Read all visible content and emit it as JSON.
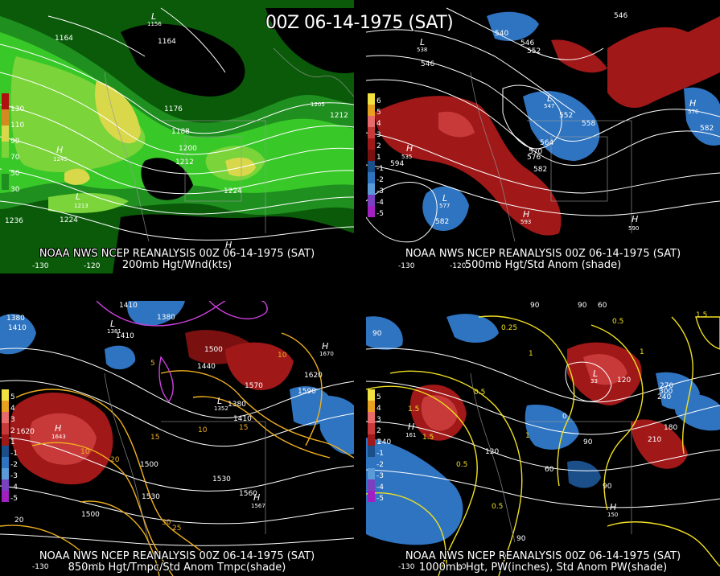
{
  "header": {
    "title": "00Z 06-14-1975 (SAT)"
  },
  "panels": [
    {
      "id": "tl",
      "caption_top": "NOAA NWS NCEP REANALYSIS 00Z 06-14-1975 (SAT)",
      "caption_bottom": "200mb Hgt/Wnd(kts)",
      "colorbar": [
        "130",
        "110",
        "90",
        "70",
        "50",
        "30"
      ],
      "labels": [
        "1164",
        "1164",
        "1176",
        "1188",
        "1200",
        "1212",
        "1212",
        "1224",
        "1224",
        "1236",
        "1205",
        "1212",
        "H",
        "1245",
        "L",
        "1213",
        "L",
        "1156",
        "H",
        "-130",
        "-120"
      ]
    },
    {
      "id": "tr",
      "caption_top": "NOAA NWS NCEP REANALYSIS 00Z 06-14-1975 (SAT)",
      "caption_bottom": "500mb Hgt/Std Anom (shade)",
      "colorbar": [
        "6",
        "5",
        "4",
        "3",
        "2",
        "1",
        "-1",
        "-2",
        "-3",
        "-4",
        "-5"
      ],
      "labels": [
        "540",
        "546",
        "552",
        "546",
        "558",
        "564",
        "570",
        "576",
        "582",
        "582",
        "594",
        "582",
        "552",
        "546",
        "L",
        "547",
        "H",
        "535",
        "L",
        "577",
        "H",
        "593",
        "H",
        "590",
        "H",
        "576",
        "L",
        "538",
        "-130",
        "-120"
      ]
    },
    {
      "id": "bl",
      "caption_top": "NOAA NWS NCEP REANALYSIS 00Z 06-14-1975 (SAT)",
      "caption_bottom": "850mb Hgt/Tmpc/Std Anom Tmpc(shade)",
      "colorbar": [
        "5",
        "4",
        "3",
        "2",
        "1",
        "-1",
        "-2",
        "-3",
        "-4",
        "-5"
      ],
      "labels": [
        "1410",
        "1380",
        "1410",
        "1410",
        "1380",
        "1500",
        "1440",
        "1620",
        "1590",
        "1530",
        "1560",
        "1500",
        "1410",
        "1380",
        "1620",
        "1560",
        "1530",
        "1500",
        "H",
        "1643",
        "L",
        "1352",
        "H",
        "1567",
        "L",
        "1381",
        "H",
        "1670",
        "5",
        "10",
        "15",
        "20",
        "25",
        "30",
        "10",
        "15",
        "10",
        "-130",
        "-120",
        "20"
      ]
    },
    {
      "id": "br",
      "caption_top": "NOAA NWS NCEP REANALYSIS 00Z 06-14-1975 (SAT)",
      "caption_bottom": "1000mb Hgt, PW(inches), Std Anom PW(shade)",
      "colorbar": [
        "5",
        "4",
        "3",
        "2",
        "1",
        "-1",
        "-2",
        "-3",
        "-4",
        "-5"
      ],
      "labels": [
        "90",
        "60",
        "90",
        "90",
        "120",
        "120",
        "150",
        "180",
        "210",
        "240",
        "270",
        "240",
        "300",
        "0.25",
        "0.5",
        "1",
        "1.5",
        "1.5",
        "1",
        "0.5",
        "0.5",
        "1.5",
        "0",
        "60",
        "90",
        "120",
        "H",
        "161",
        "H",
        "150",
        "L",
        "33",
        "-130",
        "-120"
      ]
    }
  ],
  "colors": {
    "jet": [
      "#0a5a0a",
      "#1f8f1f",
      "#38c828",
      "#7ad43a",
      "#d9d84a",
      "#d48a20",
      "#b01010"
    ],
    "anom_pos": [
      "#7a1010",
      "#a01818",
      "#c83a3a",
      "#e86a6a"
    ],
    "anom_neg": [
      "#1a4f8a",
      "#2f74c0",
      "#5a9ad8",
      "#9ab8e8"
    ],
    "contour": "#ffffff",
    "temp_contour": "#f0b020",
    "pw_contour": "#f0e020",
    "cold_contour": "#d040e0"
  }
}
